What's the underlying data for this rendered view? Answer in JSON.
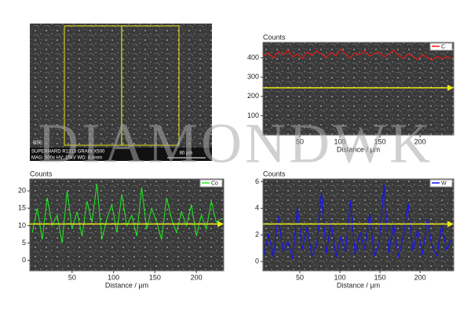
{
  "image": {
    "detector": "BSE",
    "caption": "SUPERHARD R1313 GRAIN X500",
    "params": "MAG: 500x  HV: 15kV  WD: 8.4mm",
    "scale": "80 µm"
  },
  "watermark": "DIAMONDWK",
  "chart_data": [
    {
      "type": "line",
      "ylabel": "Counts",
      "xlabel": "Distance / µm",
      "legend": "upper right",
      "xlim": [
        4,
        242
      ],
      "ylim": [
        0,
        480
      ],
      "xticks": [
        50,
        100,
        150,
        200
      ],
      "yticks": [
        100,
        200,
        300,
        400
      ],
      "x": [
        5,
        11,
        17,
        23,
        29,
        35,
        41,
        47,
        53,
        59,
        65,
        71,
        77,
        83,
        89,
        95,
        101,
        107,
        113,
        119,
        125,
        131,
        137,
        143,
        149,
        155,
        161,
        167,
        173,
        179,
        185,
        191,
        197,
        203,
        209,
        215,
        221,
        227,
        233,
        239
      ],
      "series": [
        {
          "name": "C",
          "color": "#ff1010",
          "values": [
            410,
            425,
            398,
            432,
            415,
            440,
            405,
            420,
            395,
            430,
            412,
            436,
            418,
            402,
            428,
            410,
            445,
            420,
            400,
            425,
            415,
            438,
            409,
            422,
            430,
            405,
            418,
            442,
            412,
            396,
            420,
            408,
            390,
            415,
            402,
            388,
            410,
            395,
            405,
            400
          ]
        }
      ]
    },
    {
      "type": "line",
      "ylabel": "Counts",
      "xlabel": "Distance / µm",
      "legend": "upper right",
      "xlim": [
        -1,
        233
      ],
      "ylim": [
        -3,
        23.4
      ],
      "xticks": [
        50,
        100,
        150,
        200
      ],
      "yticks": [
        0,
        5,
        10,
        15,
        20
      ],
      "x": [
        2,
        8,
        14,
        20,
        26,
        32,
        38,
        44,
        50,
        56,
        62,
        68,
        74,
        80,
        86,
        92,
        98,
        104,
        110,
        116,
        122,
        128,
        134,
        140,
        146,
        152,
        158,
        164,
        170,
        176,
        182,
        188,
        194,
        200,
        206,
        212,
        218,
        224,
        230
      ],
      "series": [
        {
          "name": "Co",
          "color": "#22ee22",
          "values": [
            8,
            15,
            6,
            18,
            10,
            13,
            5,
            20,
            9,
            14,
            7,
            17,
            11,
            22,
            6,
            12,
            16,
            8,
            19,
            10,
            13,
            7,
            21,
            9,
            15,
            11,
            6,
            18,
            12,
            8,
            14,
            10,
            16,
            7,
            13,
            9,
            17,
            11,
            12
          ]
        }
      ]
    },
    {
      "type": "line",
      "ylabel": "Counts",
      "xlabel": "Distance / µm",
      "legend": "upper right",
      "xlim": [
        4,
        242
      ],
      "ylim": [
        -0.7,
        6.2
      ],
      "xticks": [
        50,
        100,
        150,
        200
      ],
      "yticks": [
        0,
        2,
        4,
        6
      ],
      "x": [
        5,
        11,
        17,
        23,
        29,
        35,
        41,
        47,
        53,
        59,
        65,
        71,
        77,
        83,
        89,
        95,
        101,
        107,
        113,
        119,
        125,
        131,
        137,
        143,
        149,
        155,
        161,
        167,
        173,
        179,
        185,
        191,
        197,
        203,
        209,
        215,
        221,
        227,
        233,
        239
      ],
      "series": [
        {
          "name": "W",
          "color": "#1010ff",
          "values": [
            0.5,
            2.1,
            0.3,
            3.4,
            0.8,
            1.5,
            0.2,
            4.1,
            0.9,
            2.6,
            0.4,
            1.2,
            5.2,
            0.6,
            3.0,
            0.3,
            1.8,
            0.7,
            4.6,
            0.5,
            2.2,
            0.9,
            3.6,
            0.4,
            1.4,
            5.8,
            0.6,
            2.8,
            0.3,
            1.9,
            4.4,
            0.8,
            2.4,
            0.5,
            3.2,
            1.1,
            0.4,
            2.7,
            0.9,
            1.6
          ]
        }
      ]
    }
  ]
}
